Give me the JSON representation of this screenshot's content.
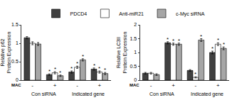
{
  "chart_data": [
    {
      "type": "bar",
      "y_label": "Relative p62\nProtein Expression",
      "categories": [
        "-",
        "+",
        "-",
        "+"
      ],
      "x_label": "MAC",
      "groups": [
        {
          "label": "Con siRNA",
          "from": 0,
          "to": 1
        },
        {
          "label": "Indicated gene",
          "from": 2,
          "to": 3
        }
      ],
      "ylim": [
        0,
        1.5
      ],
      "yticks": [
        0,
        0.5,
        1,
        1.5
      ],
      "legend": "top",
      "series": [
        {
          "name": "PDCD4",
          "color": "#404040",
          "values": [
            1.15,
            0.15,
            0.22,
            0.3
          ],
          "errors": [
            0.03,
            0.02,
            0.03,
            0.03
          ],
          "marks": [
            null,
            "*",
            "*",
            "*"
          ]
        },
        {
          "name": "Anti-miR21",
          "color": "#ffffff",
          "values": [
            1.0,
            0.2,
            0.35,
            0.22
          ],
          "errors": [
            0.04,
            0.03,
            0.03,
            0.03
          ],
          "marks": [
            null,
            "*",
            "*",
            "*"
          ]
        },
        {
          "name": "c-Myc siRNA",
          "color": "#a6a6a6",
          "values": [
            0.98,
            0.12,
            0.55,
            0.18
          ],
          "errors": [
            0.04,
            0.02,
            0.03,
            0.03
          ],
          "marks": [
            null,
            "*",
            "*",
            "*"
          ]
        }
      ]
    },
    {
      "type": "bar",
      "y_label": "Relative LC3II\nProtein Expression",
      "categories": [
        "-",
        "+",
        "-",
        "+"
      ],
      "x_label": "MAC",
      "groups": [
        {
          "label": "Con siRNA",
          "from": 0,
          "to": 1
        },
        {
          "label": "Indicated gene",
          "from": 2,
          "to": 3
        }
      ],
      "ylim": [
        0,
        2
      ],
      "yticks": [
        0,
        0.5,
        1,
        1.5,
        2
      ],
      "legend": "top",
      "series": [
        {
          "name": "PDCD4",
          "color": "#404040",
          "values": [
            0.25,
            1.35,
            0.35,
            1.0
          ],
          "errors": [
            0.03,
            0.04,
            0.03,
            0.05
          ],
          "marks": [
            null,
            "*",
            null,
            "*"
          ]
        },
        {
          "name": "Anti-miR21",
          "color": "#ffffff",
          "values": [
            0.25,
            1.3,
            0.1,
            1.3
          ],
          "errors": [
            0.03,
            0.04,
            0.02,
            0.05
          ],
          "marks": [
            null,
            "*",
            "*",
            "*"
          ]
        },
        {
          "name": "c-Myc siRNA",
          "color": "#a6a6a6",
          "values": [
            0.2,
            1.3,
            1.45,
            1.15
          ],
          "errors": [
            0.03,
            0.04,
            0.05,
            0.05
          ],
          "marks": [
            null,
            "*",
            "*",
            "*"
          ]
        }
      ]
    }
  ]
}
